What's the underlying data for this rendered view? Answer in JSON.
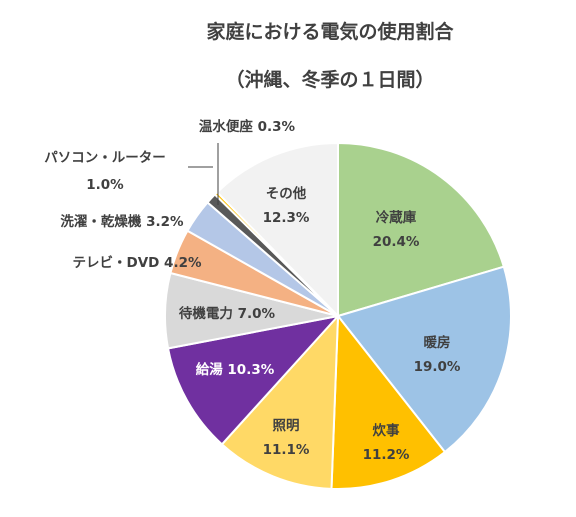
{
  "chart_data": {
    "type": "pie",
    "title": "家庭における電気の使用割合",
    "subtitle": "（沖縄、冬季の１日間）",
    "slices": [
      {
        "name": "冷蔵庫",
        "value": 20.4,
        "label": "20.4%",
        "color": "#A9D18E"
      },
      {
        "name": "暖房",
        "value": 19.0,
        "label": "19.0%",
        "color": "#9DC3E6"
      },
      {
        "name": "炊事",
        "value": 11.2,
        "label": "11.2%",
        "color": "#FFC000"
      },
      {
        "name": "照明",
        "value": 11.1,
        "label": "11.1%",
        "color": "#FFD966"
      },
      {
        "name": "給湯",
        "value": 10.3,
        "label": "10.3%",
        "color": "#7030A0"
      },
      {
        "name": "待機電力",
        "value": 7.0,
        "label": "7.0%",
        "color": "#D9D9D9"
      },
      {
        "name": "テレビ・DVD",
        "value": 4.2,
        "label": "4.2%",
        "color": "#F4B183"
      },
      {
        "name": "洗濯・乾燥機",
        "value": 3.2,
        "label": "3.2%",
        "color": "#B4C7E7"
      },
      {
        "name": "パソコン・ルーター",
        "value": 1.0,
        "label": "1.0%",
        "color": "#595959"
      },
      {
        "name": "温水便座",
        "value": 0.3,
        "label": "0.3%",
        "color": "#FFC000"
      },
      {
        "name": "その他",
        "value": 12.3,
        "label": "12.3%",
        "color": "#F2F2F2"
      }
    ]
  }
}
